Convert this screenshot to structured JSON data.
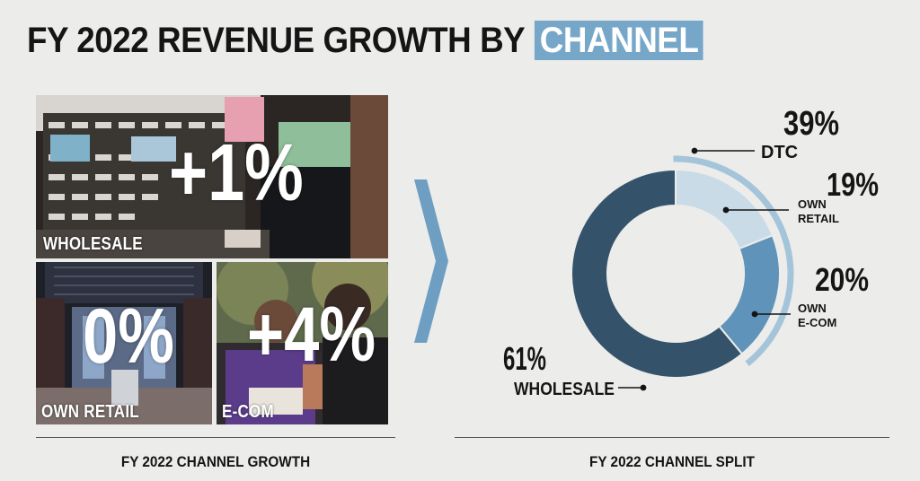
{
  "title": {
    "main": "FY 2022 REVENUE GROWTH BY ",
    "highlight": "CHANNEL"
  },
  "growth_panels": [
    {
      "value": "+1%",
      "label": "WHOLESALE"
    },
    {
      "value": "0%",
      "label": "OWN RETAIL"
    },
    {
      "value": "+4%",
      "label": "E-COM"
    }
  ],
  "left_caption": "FY 2022 CHANNEL GROWTH",
  "right_caption": "FY 2022 CHANNEL SPLIT",
  "colors": {
    "wholesale": "#34536a",
    "own_retail": "#c9dbe6",
    "own_ecom": "#5f93ba",
    "dtc_arc": "#a4c4da",
    "highlight": "#76a7c9",
    "chevron": "#6e9fc2"
  },
  "chart_data": {
    "type": "pie",
    "variant": "donut",
    "title": "FY 2022 CHANNEL SPLIT",
    "slices": [
      {
        "label": "WHOLESALE",
        "value": 61,
        "display": "61%",
        "color": "#34536a"
      },
      {
        "label": "OWN RETAIL",
        "value": 19,
        "display": "19%",
        "color": "#c9dbe6"
      },
      {
        "label": "OWN E-COM",
        "value": 20,
        "display": "20%",
        "color": "#5f93ba"
      }
    ],
    "group": {
      "label": "DTC",
      "value": 39,
      "display": "39%"
    }
  }
}
